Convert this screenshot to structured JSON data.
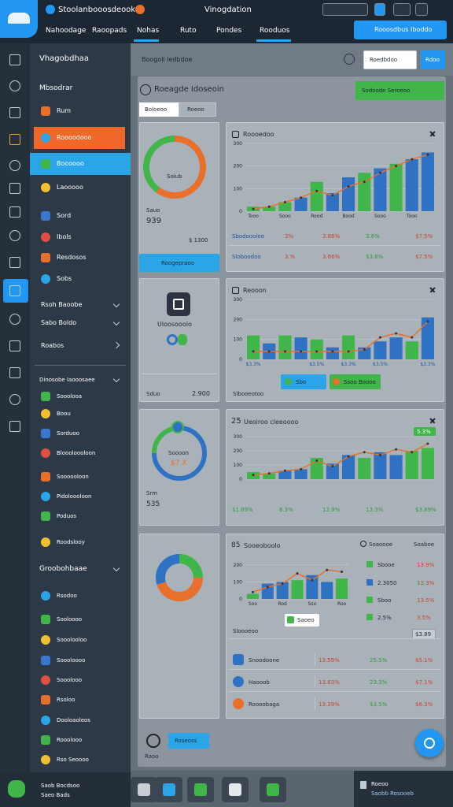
{
  "header": {
    "app_title": "Stoolanbooosdeook",
    "center_title": "Vinogdation",
    "nav": [
      "Nahoodage",
      "Raoopads",
      "Nohas",
      "Ruto",
      "Pondes",
      "Rooduos"
    ],
    "active_nav": [
      2,
      5
    ],
    "action_button": "Rooosdbus Iboddo"
  },
  "sidebar": {
    "title": "Vhagobdhaa",
    "section": "Mbsodrar",
    "items": [
      "Rum",
      "Roooodooo",
      "Boooooo",
      "Laooooo",
      "Sord",
      "Ibols",
      "Resdosos",
      "Sobs"
    ],
    "highlight_orange": 1,
    "highlight_blue": 2,
    "groups": [
      "Rsoh Baoobe",
      "Sabo Boldo",
      "Roabos"
    ],
    "section2": "Dinosobe Iaooosaee",
    "items2": [
      "Sooolooa",
      "Boou",
      "Sorduoo",
      "Bloooloooloon",
      "Soooooloon",
      "Pidoloooloon",
      "Poduos",
      "Roodslooy"
    ],
    "section3": "Groobohbaae",
    "items3": [
      "Rsodoo",
      "Sooloooo",
      "Sooolooloo",
      "Soooloooo",
      "Sooolooo",
      "Rsoloo",
      "Dooloaoleos",
      "Rooolooo",
      "Rso Seoooo"
    ],
    "footer": [
      "Saob Bocdsoo",
      "Saeo Bads"
    ]
  },
  "toolbar": {
    "breadcrumb": "Boogoll ledbdoe",
    "search": "Roedbdoo",
    "button": "Rdoo"
  },
  "panel": {
    "title": "Roeagde Idoseoin",
    "filter": "Sodoode Seroeoo",
    "tabs": [
      "Boloeoo",
      "Roeoo"
    ]
  },
  "cards": [
    {
      "donut": [
        60,
        40
      ],
      "donut_colors": [
        "#e8702a",
        "#3fb54a"
      ],
      "donut_label": "Soiub",
      "label": "Sauo",
      "value": "939",
      "amount": "$ 1300",
      "button": "Roogepraoo"
    },
    {
      "title": "Uloosoooio",
      "label": "Sduo",
      "value": "2.900"
    },
    {
      "donut": [
        75,
        25
      ],
      "donut_colors": [
        "#2f72c4",
        "#3fb54a"
      ],
      "line1": "Soooon",
      "line2": "$7.X",
      "label": "Srm",
      "value": "535"
    },
    {
      "donut": [
        25,
        45,
        30
      ],
      "donut_colors": [
        "#3fb54a",
        "#e8702a",
        "#2f72c4"
      ]
    }
  ],
  "charts": [
    {
      "title": "Roooedoo",
      "ylim": [
        0,
        300
      ],
      "yticks": [
        0,
        100,
        200,
        300
      ],
      "categories": [
        "Tooo",
        null,
        "Sooo",
        null,
        "Rood",
        null,
        "Bood",
        null,
        "Sooo",
        null,
        "Tooo",
        null
      ],
      "bars": [
        20,
        20,
        40,
        60,
        130,
        80,
        150,
        170,
        190,
        210,
        230,
        260
      ],
      "bar_colors": [
        "#3fb54a",
        "#3fb54a",
        "#3fb54a",
        "#2f72c4",
        "#3fb54a",
        "#2f72c4",
        "#2f72c4",
        "#3fb54a",
        "#2f72c4",
        "#3fb54a",
        "#2f72c4",
        "#2f72c4"
      ],
      "line": [
        10,
        20,
        40,
        60,
        90,
        70,
        110,
        130,
        170,
        200,
        230,
        250
      ],
      "line_color": "#e8702a",
      "stats": [
        {
          "label": "Sbodooolee",
          "values": [
            "3%",
            "3.86%",
            "3.6%",
            "$7.5%"
          ],
          "colors": [
            "#d0402a",
            "#d0402a",
            "#2f9a3a",
            "#d0402a"
          ]
        },
        {
          "label": "Sloboodoo",
          "values": [
            "3.%",
            "3.66%",
            "$3.8%",
            "$7.5%"
          ],
          "colors": [
            "#d0402a",
            "#d0402a",
            "#2f9a3a",
            "#d0402a"
          ]
        }
      ]
    },
    {
      "title": "Reooon",
      "ylim": [
        0,
        300
      ],
      "yticks": [
        0,
        100,
        200,
        300
      ],
      "categories": [
        "$3.3%",
        null,
        null,
        null,
        "$3.5%",
        null,
        "$3.3%",
        null,
        "$3.5%",
        null,
        null,
        "$3.3%"
      ],
      "bars": [
        120,
        80,
        120,
        110,
        100,
        60,
        120,
        60,
        90,
        110,
        90,
        210
      ],
      "bar_colors": [
        "#3fb54a",
        "#2f72c4",
        "#3fb54a",
        "#2f72c4",
        "#3fb54a",
        "#2f72c4",
        "#3fb54a",
        "#2f72c4",
        "#2f72c4",
        "#2f72c4",
        "#3fb54a",
        "#2f72c4"
      ],
      "line": [
        40,
        40,
        40,
        40,
        40,
        40,
        40,
        50,
        110,
        130,
        110,
        190
      ],
      "line_color": "#e8702a",
      "buttons": [
        "Sbo",
        "Ssoo Boooo"
      ],
      "footer": "Slbooeotoo"
    },
    {
      "badge": "25",
      "title": "Ueoiroo cleeoooo",
      "tag": "5.3%",
      "ylim": [
        0,
        300
      ],
      "yticks": [
        0,
        100,
        200,
        300
      ],
      "categories": [
        null,
        null,
        null,
        null,
        null,
        null,
        null,
        null,
        null,
        null,
        null,
        null
      ],
      "bars": [
        50,
        40,
        60,
        70,
        150,
        110,
        170,
        150,
        190,
        170,
        200,
        220
      ],
      "bar_colors": [
        "#3fb54a",
        "#3fb54a",
        "#2f72c4",
        "#2f72c4",
        "#3fb54a",
        "#2f72c4",
        "#2f72c4",
        "#3fb54a",
        "#2f72c4",
        "#2f72c4",
        "#3fb54a",
        "#3fb54a"
      ],
      "line": [
        30,
        40,
        60,
        70,
        130,
        90,
        160,
        190,
        170,
        210,
        190,
        250
      ],
      "line_color": "#e8702a",
      "stats": [
        {
          "label": "$1.89%",
          "values": [
            "8.3%",
            "12.9%",
            "13.3%",
            "$3.89%"
          ],
          "colors": [
            "#2f9a3a",
            "#2f9a3a",
            "#2f9a3a",
            "#2f9a3a"
          ]
        }
      ]
    },
    {
      "badge": "85",
      "title": "Sooeoboolo",
      "ylim": [
        0,
        250
      ],
      "yticks": [
        0,
        100,
        200
      ],
      "categories": [
        "Soo",
        null,
        "Rod",
        null,
        "Sso",
        null,
        "Roo"
      ],
      "bars": [
        30,
        90,
        100,
        110,
        140,
        100,
        120
      ],
      "bar_colors": [
        "#3fb54a",
        "#2f72c4",
        "#2f72c4",
        "#3fb54a",
        "#2f72c4",
        "#2f72c4",
        "#3fb54a"
      ],
      "line": [
        40,
        70,
        90,
        150,
        110,
        170,
        160
      ],
      "line_color": "#e8702a",
      "button": "Saoeo"
    }
  ],
  "legend_panel": {
    "headers": [
      "Soaoooe",
      "Soaboe"
    ],
    "rows": [
      {
        "name": "Sbooe",
        "value": "13.9%",
        "color": "#3fb54a"
      },
      {
        "name": "2.3050",
        "value": "13.3%",
        "color": "#2f72c4"
      },
      {
        "name": "Sboo",
        "value": "13.5%",
        "color": "#3fb54a"
      },
      {
        "name": "2.5%",
        "value": "3.5%",
        "color": "#3fb54a"
      }
    ],
    "total": "$3.89"
  },
  "table": {
    "title": "Sloooeoo",
    "rows": [
      [
        "Snoodoone",
        "13.59%",
        "25.5%",
        "$5.1%"
      ],
      [
        "Haooob",
        "13.83%",
        "23.3%",
        "$7.1%"
      ],
      [
        "Roooobaga",
        "13.39%",
        "$3.5%",
        "$6.3%"
      ]
    ]
  },
  "bottom": {
    "label": "Raoo",
    "button": "Roseoss"
  },
  "dock": {
    "info": [
      "Roeoo",
      "Saobb Rosooeb"
    ]
  }
}
